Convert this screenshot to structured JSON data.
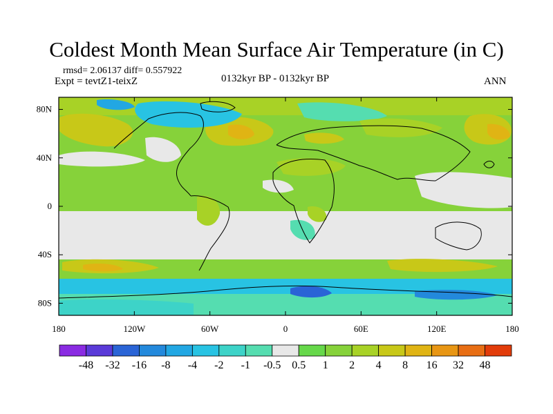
{
  "title": "Coldest Month Mean Surface Air Temperature (in C)",
  "stats_line": "rmsd= 2.06137 diff= 0.557922",
  "experiment": "Expt = tevtZ1-teixZ",
  "period": "0132kyr BP - 0132kyr BP",
  "season": "ANN",
  "map": {
    "projection": "equirectangular",
    "lon_range": [
      -180,
      180
    ],
    "lat_range": [
      -90,
      90
    ],
    "x_ticks": [
      {
        "value": -180,
        "label": "180"
      },
      {
        "value": -120,
        "label": "120W"
      },
      {
        "value": -60,
        "label": "60W"
      },
      {
        "value": 0,
        "label": "0"
      },
      {
        "value": 60,
        "label": "60E"
      },
      {
        "value": 120,
        "label": "120E"
      },
      {
        "value": 180,
        "label": "180"
      }
    ],
    "y_ticks": [
      {
        "value": 80,
        "label": "80N"
      },
      {
        "value": 40,
        "label": "40N"
      },
      {
        "value": 0,
        "label": "0"
      },
      {
        "value": -40,
        "label": "40S"
      },
      {
        "value": -80,
        "label": "80S"
      }
    ]
  },
  "colorbar": {
    "colors": [
      "#8a2be2",
      "#5a3ad8",
      "#2a64d6",
      "#2389dc",
      "#22a7e3",
      "#28c3e3",
      "#3dd3c8",
      "#55ddb0",
      "#e8e8e8",
      "#66d84a",
      "#86d23a",
      "#a8d226",
      "#c8c818",
      "#e0b414",
      "#e89614",
      "#e86e14",
      "#e23c0a"
    ],
    "labels": [
      "-48",
      "-32",
      "-16",
      "-8",
      "-4",
      "-2",
      "-1",
      "-0.5",
      "0.5",
      "1",
      "2",
      "4",
      "8",
      "16",
      "32",
      "48"
    ]
  }
}
